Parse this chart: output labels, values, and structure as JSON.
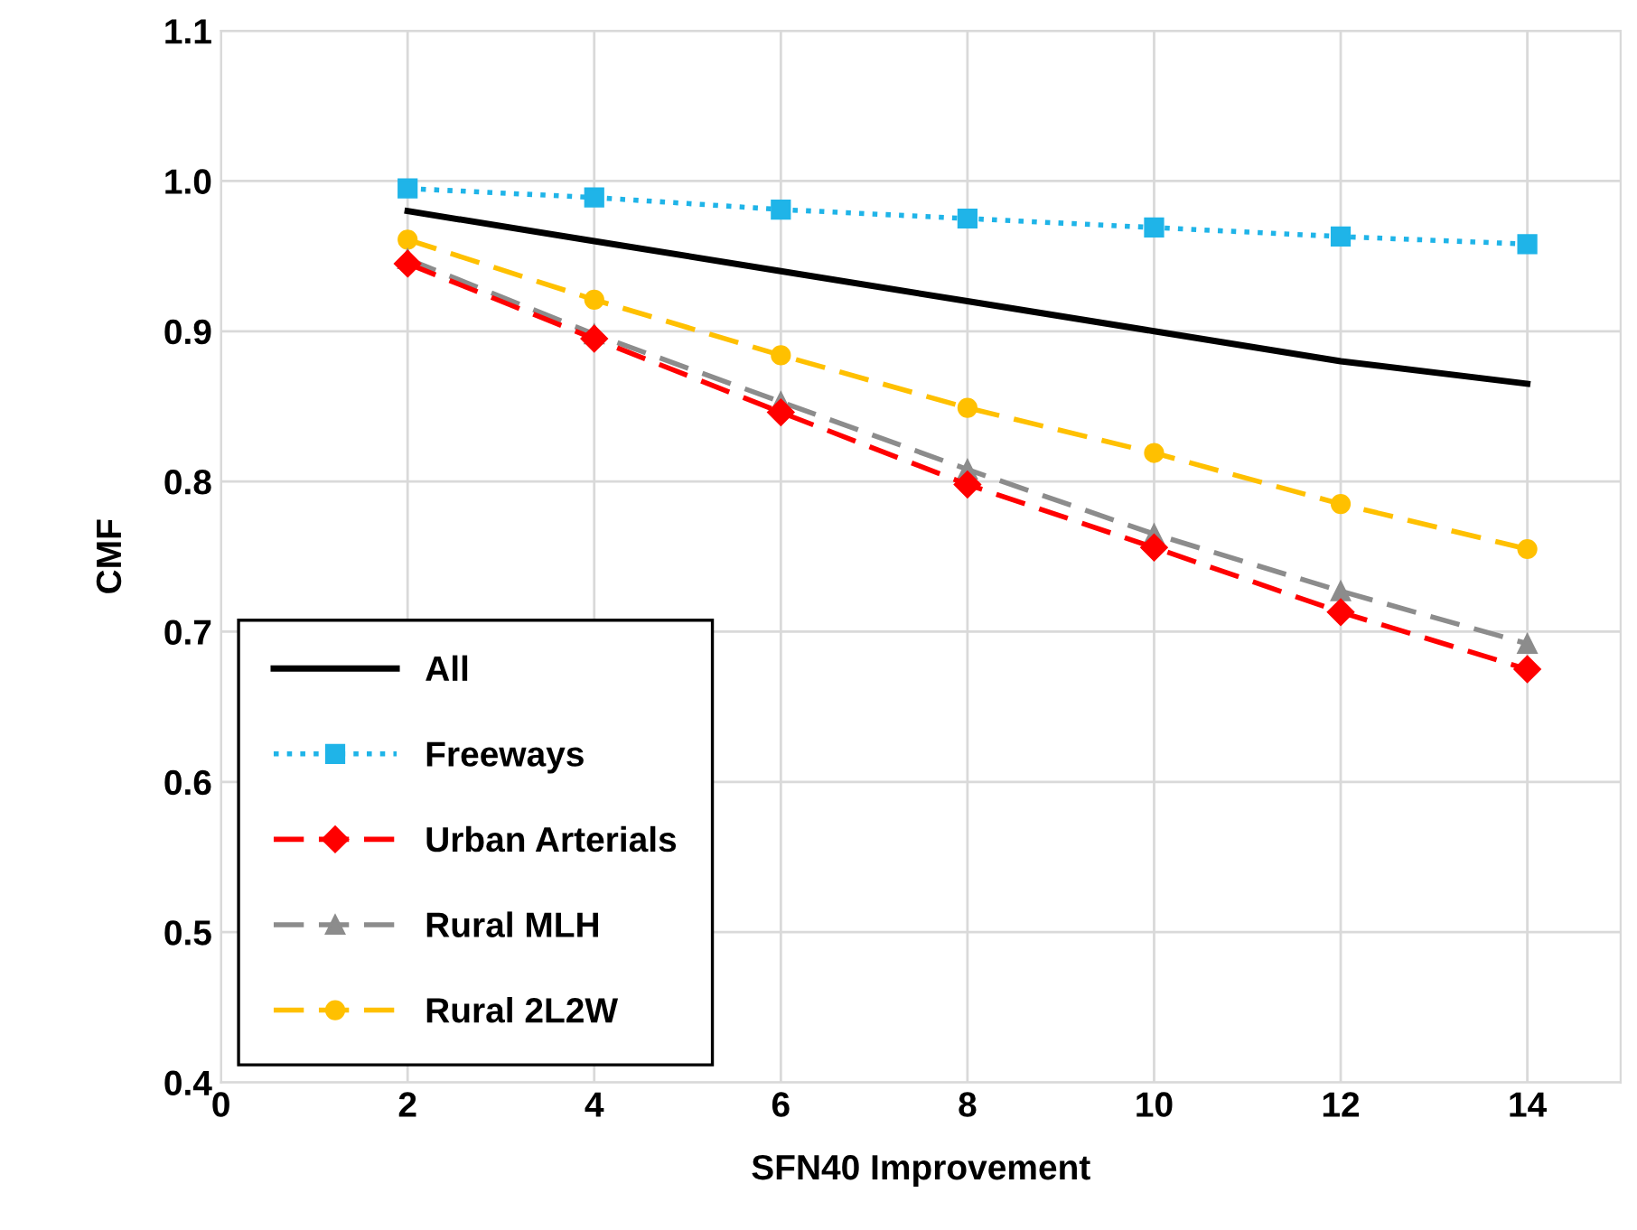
{
  "chart_data": {
    "type": "line",
    "xlabel": "SFN40 Improvement",
    "ylabel": "CMF",
    "x": [
      2,
      4,
      6,
      8,
      10,
      12,
      14
    ],
    "series": [
      {
        "name": "All",
        "color": "#000000",
        "marker": "none",
        "line_style": "solid",
        "values": [
          0.98,
          0.96,
          0.94,
          0.92,
          0.9,
          0.88,
          0.865
        ]
      },
      {
        "name": "Freeways",
        "color": "#1fb4e8",
        "marker": "square",
        "line_style": "dotted",
        "values": [
          0.995,
          0.989,
          0.981,
          0.975,
          0.969,
          0.963,
          0.958
        ]
      },
      {
        "name": "Urban Arterials",
        "color": "#ff0000",
        "marker": "diamond",
        "line_style": "dashed",
        "values": [
          0.945,
          0.895,
          0.846,
          0.798,
          0.756,
          0.713,
          0.675
        ]
      },
      {
        "name": "Rural MLH",
        "color": "#8c8c8c",
        "marker": "triangle",
        "line_style": "dashed",
        "values": [
          0.948,
          0.898,
          0.853,
          0.808,
          0.765,
          0.727,
          0.692
        ]
      },
      {
        "name": "Rural 2L2W",
        "color": "#ffc000",
        "marker": "circle",
        "line_style": "dashed",
        "values": [
          0.961,
          0.921,
          0.884,
          0.849,
          0.819,
          0.785,
          0.755
        ]
      }
    ],
    "xlim": [
      0,
      15
    ],
    "xticks": [
      0,
      2,
      4,
      6,
      8,
      10,
      12,
      14
    ],
    "ylim": [
      0.4,
      1.1
    ],
    "yticks": [
      0.4,
      0.5,
      0.6,
      0.7,
      0.8,
      0.9,
      {
        "value": 1.0,
        "label": "1.0"
      },
      1.1
    ],
    "grid": true,
    "legend": "bottom left"
  }
}
